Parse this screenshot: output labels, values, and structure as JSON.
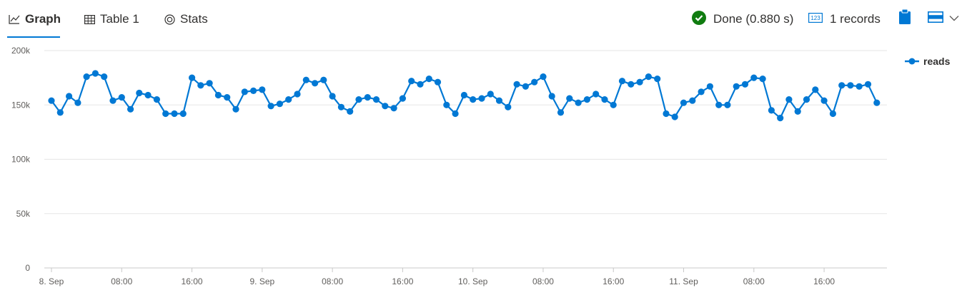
{
  "tabs": [
    {
      "label": "Graph",
      "active": true
    },
    {
      "label": "Table 1",
      "active": false
    },
    {
      "label": "Stats",
      "active": false
    }
  ],
  "status": {
    "done_label": "Done (0.880 s)",
    "records_label": "1 records",
    "records_icon_text": "123",
    "success_color": "#107c10"
  },
  "accent_color": "#0078d4",
  "legend": {
    "label": "reads"
  },
  "chart_data": {
    "type": "line",
    "title": "",
    "xlabel": "",
    "ylabel": "",
    "ylim": [
      0,
      200000
    ],
    "y_ticks": [
      0,
      50000,
      100000,
      150000,
      200000
    ],
    "y_tick_labels": [
      "0",
      "50k",
      "100k",
      "150k",
      "200k"
    ],
    "x_ticks": [
      {
        "hour": 0,
        "label": "8. Sep"
      },
      {
        "hour": 8,
        "label": "08:00"
      },
      {
        "hour": 16,
        "label": "16:00"
      },
      {
        "hour": 24,
        "label": "9. Sep"
      },
      {
        "hour": 32,
        "label": "08:00"
      },
      {
        "hour": 40,
        "label": "16:00"
      },
      {
        "hour": 48,
        "label": "10. Sep"
      },
      {
        "hour": 56,
        "label": "08:00"
      },
      {
        "hour": 64,
        "label": "16:00"
      },
      {
        "hour": 72,
        "label": "11. Sep"
      },
      {
        "hour": 80,
        "label": "08:00"
      },
      {
        "hour": 88,
        "label": "16:00"
      }
    ],
    "x_start": "8. Sep 00:00",
    "x_step_hours": 1,
    "grid": true,
    "legend_position": "top-right",
    "series": [
      {
        "name": "reads",
        "color": "#0078d4",
        "values": [
          154000,
          143000,
          158000,
          152000,
          176000,
          179000,
          176000,
          154000,
          157000,
          146000,
          161000,
          159000,
          155000,
          142000,
          142000,
          142000,
          175000,
          168000,
          170000,
          159000,
          157000,
          146000,
          162000,
          163000,
          164000,
          149000,
          151000,
          155000,
          160000,
          173000,
          170000,
          173000,
          158000,
          148000,
          144000,
          155000,
          157000,
          155000,
          149000,
          147000,
          156000,
          172000,
          169000,
          174000,
          171000,
          150000,
          142000,
          159000,
          155000,
          156000,
          160000,
          154000,
          148000,
          169000,
          167000,
          171000,
          176000,
          158000,
          143000,
          156000,
          152000,
          155000,
          160000,
          155000,
          150000,
          172000,
          169000,
          171000,
          176000,
          174000,
          142000,
          139000,
          152000,
          154000,
          162000,
          167000,
          150000,
          150000,
          167000,
          169000,
          175000,
          174000,
          145000,
          138000,
          155000,
          144000,
          155000,
          164000,
          154000,
          142000,
          168000,
          168000,
          167000,
          169000,
          152000
        ]
      }
    ]
  }
}
